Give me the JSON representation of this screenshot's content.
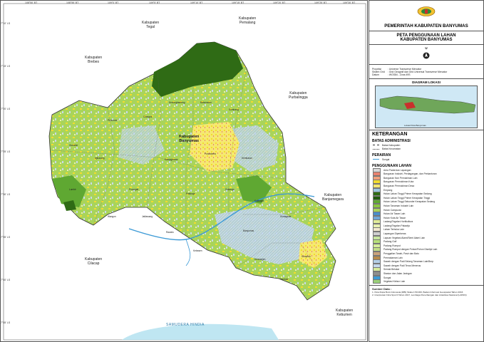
{
  "map": {
    "neighbors": {
      "tegal": "Kabupaten\nTegal",
      "pemalang": "Kabupaten\nPemalang",
      "brebes": "Kabupaten\nBrebes",
      "purbalingga": "Kabupaten\nPurbalingga",
      "banjarnegara": "Kabupaten\nBanjarnegara",
      "cilacap": "Kabupaten\nCilacap",
      "kebumen": "Kabupaten\nKebumen"
    },
    "center_label": "Kabupaten\nBanyumas",
    "sea_label": "SAMUDERA HINDIA",
    "top_coords": [
      "108°50' BT",
      "108°55' BT",
      "109°0' BT",
      "109°5' BT",
      "109°10' BT",
      "109°15' BT",
      "109°20' BT",
      "109°25' BT",
      "109°30' BT"
    ],
    "left_coords": [
      "7°10' LS",
      "7°15' LS",
      "7°20' LS",
      "7°25' LS",
      "7°30' LS",
      "7°35' LS",
      "7°40' LS",
      "7°45' LS"
    ],
    "districts": [
      "Lumbir",
      "Wangon",
      "Jatilawang",
      "Rawalo",
      "Kebasen",
      "Ajibarang",
      "Pekuncen",
      "Cilongok",
      "Karanglewas",
      "Kedungbanteng",
      "Baturraden",
      "Sumbang",
      "Kembaran",
      "Sokaraja",
      "Purwokerto",
      "Patikraja",
      "Purwojati",
      "Gumelar",
      "Somagede",
      "Kalibagor",
      "Banyumas",
      "Kemranjen",
      "Sumpiuh",
      "Tambak"
    ]
  },
  "legend": {
    "gov_title": "PEMERINTAH KABUPATEN BANYUMAS",
    "map_title_1": "PETA PENGGUNAAN LAHAN",
    "map_title_2": "KABUPATEN BANYUMAS",
    "north": "U",
    "proj_label": "Proyeksi",
    "proj_value": ": Universe Transverse Mercator",
    "grid_label": "Sistem Grid",
    "grid_value": ": Grid Geografi dan Grid Universal Transverse Mercator",
    "datum_label": "Datum",
    "datum_value": ": WGS84 - Zona 49S",
    "diagram_title": "DIAGRAM LOKASI",
    "diagram_note": "Lokasi Peta Banyumas",
    "keterangan": "KETERANGAN",
    "batas_title": "BATAS ADMINISTRASI",
    "batas_items": [
      "Batas Kabupaten",
      "Batas Kecamatan"
    ],
    "perairan_title": "PERAIRAN",
    "perairan_items": [
      "Sungai"
    ],
    "penggunaan_title": "PENGGUNAAN LAHAN",
    "land_use": [
      {
        "label": "Area Padat dan Lapangan",
        "color": "#d9d9d9"
      },
      {
        "label": "Bangunan Industri, Perdagangan, dan Perkantoran",
        "color": "#e8826f"
      },
      {
        "label": "Bangunan Non Pemukiman Lain",
        "color": "#f2a07b"
      },
      {
        "label": "Bangunan Permukiman Kota",
        "color": "#f2dc2e"
      },
      {
        "label": "Bangunan Permukiman Desa",
        "color": "#f5e871"
      },
      {
        "label": "Empang",
        "color": "#9cc7e0"
      },
      {
        "label": "Hutan Lahan Tinggi Primer Kerapatan Sedang",
        "color": "#2e6b14"
      },
      {
        "label": "Hutan Lahan Tinggi Primer Kerapatan Tinggi",
        "color": "#1f5a0c"
      },
      {
        "label": "Hutan Lahan Tinggi Sekunder Kerapatan Sedang",
        "color": "#5fa832"
      },
      {
        "label": "Hutan Tanaman Industri Lain",
        "color": "#8cc640"
      },
      {
        "label": "Hutan Campuran",
        "color": "#a9d45a"
      },
      {
        "label": "Hutan Air Tawar Lain",
        "color": "#4b8ec9"
      },
      {
        "label": "Hutan Kota Air Tawar",
        "color": "#6fa7d8"
      },
      {
        "label": "Ladang/Tegalan Hortikultura",
        "color": "#e0ec9a"
      },
      {
        "label": "Ladang/Tegalan Palawija",
        "color": "#e8f0b0"
      },
      {
        "label": "Lahan Terbuka Lain",
        "color": "#f2e9d0"
      },
      {
        "label": "Lapangan Diperkeras",
        "color": "#cfcfcf"
      },
      {
        "label": "Lapuan Vegetasi Alami/Semi Alami Lain",
        "color": "#c8e6a0"
      },
      {
        "label": "Padang Golf",
        "color": "#b6e07a"
      },
      {
        "label": "Padang Rumput",
        "color": "#d6ee9a"
      },
      {
        "label": "Padang Rumput dengan Pohon/Pohon Diselipi Lain",
        "color": "#c1de86"
      },
      {
        "label": "Penggalian Tanah, Pasir dan Batu",
        "color": "#c9a27a"
      },
      {
        "label": "Permakaman Lain",
        "color": "#b88a4a"
      },
      {
        "label": "Sawah dengan Padi Selang Tanaman Lain/Berp",
        "color": "#b5cfe6"
      },
      {
        "label": "Sawah dengan Padi Terus Menerus",
        "color": "#c6d9ec"
      },
      {
        "label": "Semak Belukar",
        "color": "#d7eb9d"
      },
      {
        "label": "Stasiun dan Jalan Jaringan",
        "color": "#8e8e8e"
      },
      {
        "label": "Sungai",
        "color": "#3c9ad6"
      },
      {
        "label": "Vegetasi Kebun Lain",
        "color": "#9ad07a"
      }
    ],
    "sumber_title": "Sumber Data :",
    "sumber_1": "1. Peta Rupa Bumi Indonesia (RBI) Skala 1:50.000, Badan Informasi Geospasial Tahun 2016",
    "sumber_2": "2. Interpretasi Citra Spot 6 Tahun 2017, Lembaga Penerbangan dan Antariksa Nasional (LAPAN)"
  },
  "colors": {
    "forest_dark": "#2f6b15",
    "forest_mid": "#5fa832",
    "agri": "#a9d45a",
    "settlement": "#f2dc2e",
    "paddy": "#c6d9ec",
    "sea": "#bfe6f2",
    "outside": "#ffffff",
    "river": "#3c9ad6"
  }
}
